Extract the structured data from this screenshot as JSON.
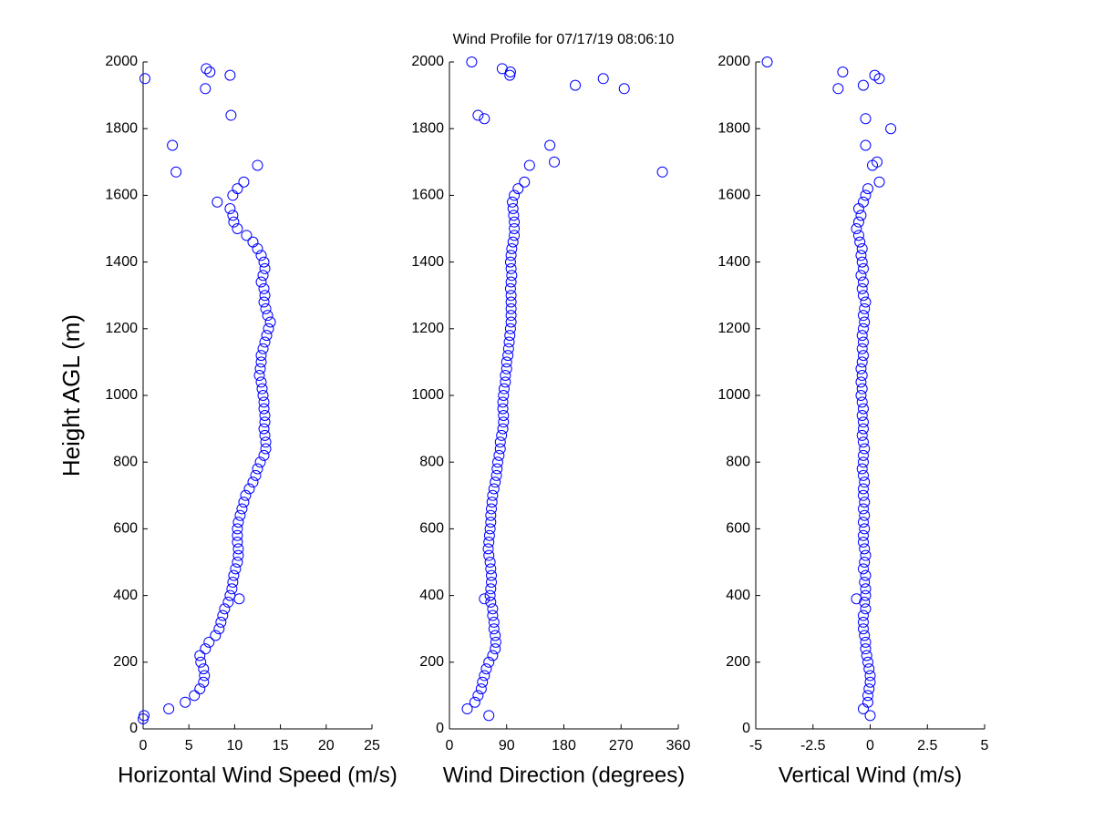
{
  "chart_data": [
    {
      "type": "scatter",
      "title": "Wind Profile for  07/17/19 08:06:10",
      "xlabel": "Horizontal Wind Speed (m/s)",
      "ylabel": "Height AGL (m)",
      "color": "#0000ff",
      "xlim": [
        0,
        25
      ],
      "xticks": [
        0,
        5,
        10,
        15,
        20,
        25
      ],
      "ylim": [
        0,
        2000
      ],
      "yticks": [
        0,
        200,
        400,
        600,
        800,
        1000,
        1200,
        1400,
        1600,
        1800,
        2000
      ],
      "x": [
        0.1,
        2.8,
        4.6,
        5.6,
        6.2,
        6.6,
        6.7,
        6.6,
        6.3,
        6.2,
        6.8,
        7.2,
        7.9,
        8.3,
        8.5,
        8.7,
        8.9,
        9.3,
        9.5,
        9.7,
        9.8,
        9.9,
        10.1,
        10.3,
        10.4,
        10.4,
        10.3,
        10.3,
        10.3,
        10.4,
        10.6,
        10.8,
        11,
        11.2,
        11.6,
        12,
        12.3,
        12.5,
        12.8,
        13.2,
        13.4,
        13.4,
        13.3,
        13.2,
        13.3,
        13.3,
        13.2,
        13.2,
        13.1,
        13,
        12.9,
        12.7,
        12.8,
        12.9,
        12.9,
        13.1,
        13.3,
        13.5,
        13.7,
        13.9,
        13.6,
        13.4,
        13.2,
        13.3,
        13.2,
        12.9,
        13.1,
        13.3,
        13.2,
        12.9,
        12.5,
        12,
        11.3,
        10.3,
        9.9,
        9.8,
        9.5,
        8.1,
        9.8,
        10.3,
        11,
        12.5,
        3.6,
        3.2,
        9.6,
        6.8,
        9.5,
        6.9,
        7.3,
        0.2,
        10.5,
        0
      ],
      "y": [
        40,
        60,
        80,
        100,
        120,
        140,
        160,
        180,
        200,
        220,
        240,
        260,
        280,
        300,
        320,
        340,
        360,
        380,
        400,
        420,
        440,
        460,
        480,
        500,
        520,
        540,
        560,
        580,
        600,
        620,
        640,
        660,
        680,
        700,
        720,
        740,
        760,
        780,
        800,
        820,
        840,
        860,
        880,
        900,
        920,
        940,
        960,
        980,
        1000,
        1020,
        1040,
        1060,
        1080,
        1100,
        1120,
        1140,
        1160,
        1180,
        1200,
        1220,
        1240,
        1260,
        1280,
        1300,
        1320,
        1340,
        1360,
        1380,
        1400,
        1420,
        1440,
        1460,
        1480,
        1500,
        1520,
        1540,
        1560,
        1580,
        1600,
        1620,
        1640,
        1690,
        1670,
        1750,
        1840,
        1920,
        1960,
        1980,
        1970,
        1950,
        390,
        30
      ]
    },
    {
      "type": "scatter",
      "xlabel": "Wind Direction (degrees)",
      "color": "#0000ff",
      "xlim": [
        0,
        360
      ],
      "xticks": [
        0,
        90,
        180,
        270,
        360
      ],
      "ylim": [
        0,
        2000
      ],
      "yticks": [
        0,
        200,
        400,
        600,
        800,
        1000,
        1200,
        1400,
        1600,
        1800,
        2000
      ],
      "x": [
        62,
        28,
        40,
        45,
        50,
        52,
        55,
        58,
        62,
        68,
        72,
        73,
        72,
        70,
        70,
        68,
        68,
        65,
        64,
        65,
        66,
        66,
        65,
        64,
        62,
        61,
        62,
        63,
        64,
        65,
        65,
        66,
        67,
        68,
        70,
        72,
        74,
        75,
        76,
        78,
        80,
        80,
        82,
        84,
        85,
        85,
        84,
        84,
        85,
        86,
        88,
        88,
        90,
        90,
        92,
        93,
        94,
        95,
        96,
        97,
        97,
        97,
        97,
        97,
        96,
        97,
        98,
        97,
        96,
        97,
        98,
        100,
        102,
        102,
        102,
        101,
        100,
        99,
        102,
        108,
        118,
        126,
        165,
        158,
        55,
        45,
        198,
        242,
        275,
        335,
        95,
        96,
        83,
        35,
        55
      ],
      "y": [
        40,
        60,
        80,
        100,
        120,
        140,
        160,
        180,
        200,
        220,
        240,
        260,
        280,
        300,
        320,
        340,
        360,
        380,
        400,
        420,
        440,
        460,
        480,
        500,
        520,
        540,
        560,
        580,
        600,
        620,
        640,
        660,
        680,
        700,
        720,
        740,
        760,
        780,
        800,
        820,
        840,
        860,
        880,
        900,
        920,
        940,
        960,
        980,
        1000,
        1020,
        1040,
        1060,
        1080,
        1100,
        1120,
        1140,
        1160,
        1180,
        1200,
        1220,
        1240,
        1260,
        1280,
        1300,
        1320,
        1340,
        1360,
        1380,
        1400,
        1420,
        1440,
        1460,
        1480,
        1500,
        1520,
        1540,
        1560,
        1580,
        1600,
        1620,
        1640,
        1690,
        1700,
        1750,
        1830,
        1840,
        1930,
        1950,
        1920,
        1670,
        1960,
        1970,
        1980,
        2000,
        390
      ]
    },
    {
      "type": "scatter",
      "xlabel": "Vertical Wind (m/s)",
      "color": "#0000ff",
      "xlim": [
        -5,
        5
      ],
      "xticks": [
        -5,
        -2.5,
        0,
        2.5,
        5
      ],
      "ylim": [
        0,
        2000
      ],
      "yticks": [
        0,
        200,
        400,
        600,
        800,
        1000,
        1200,
        1400,
        1600,
        1800,
        2000
      ],
      "x": [
        0,
        -0.3,
        -0.1,
        -0.1,
        -0.05,
        0,
        0,
        -0.05,
        -0.1,
        -0.15,
        -0.2,
        -0.2,
        -0.25,
        -0.3,
        -0.3,
        -0.3,
        -0.2,
        -0.25,
        -0.2,
        -0.2,
        -0.25,
        -0.2,
        -0.3,
        -0.25,
        -0.2,
        -0.25,
        -0.3,
        -0.3,
        -0.25,
        -0.3,
        -0.25,
        -0.3,
        -0.25,
        -0.3,
        -0.3,
        -0.25,
        -0.3,
        -0.35,
        -0.3,
        -0.3,
        -0.25,
        -0.3,
        -0.35,
        -0.3,
        -0.3,
        -0.35,
        -0.3,
        -0.35,
        -0.4,
        -0.35,
        -0.4,
        -0.35,
        -0.4,
        -0.35,
        -0.3,
        -0.35,
        -0.3,
        -0.35,
        -0.3,
        -0.25,
        -0.3,
        -0.25,
        -0.2,
        -0.3,
        -0.35,
        -0.3,
        -0.4,
        -0.3,
        -0.35,
        -0.4,
        -0.35,
        -0.45,
        -0.5,
        -0.6,
        -0.5,
        -0.4,
        -0.5,
        -0.3,
        -0.2,
        -4.5,
        -1.4,
        -1.2,
        -0.3,
        0.2,
        0.4,
        -0.2,
        0.9,
        -0.2,
        0.1,
        0.3,
        0.4,
        -0.1,
        -0.6
      ],
      "y": [
        40,
        60,
        80,
        100,
        120,
        140,
        160,
        180,
        200,
        220,
        240,
        260,
        280,
        300,
        320,
        340,
        360,
        380,
        400,
        420,
        440,
        460,
        480,
        500,
        520,
        540,
        560,
        580,
        600,
        620,
        640,
        660,
        680,
        700,
        720,
        740,
        760,
        780,
        800,
        820,
        840,
        860,
        880,
        900,
        920,
        940,
        960,
        980,
        1000,
        1020,
        1040,
        1060,
        1080,
        1100,
        1120,
        1140,
        1160,
        1180,
        1200,
        1220,
        1240,
        1260,
        1280,
        1300,
        1320,
        1340,
        1360,
        1380,
        1400,
        1420,
        1440,
        1460,
        1480,
        1500,
        1520,
        1540,
        1560,
        1580,
        1600,
        2000,
        1920,
        1970,
        1930,
        1960,
        1950,
        1830,
        1800,
        1750,
        1690,
        1700,
        1640,
        1620,
        390
      ]
    }
  ]
}
